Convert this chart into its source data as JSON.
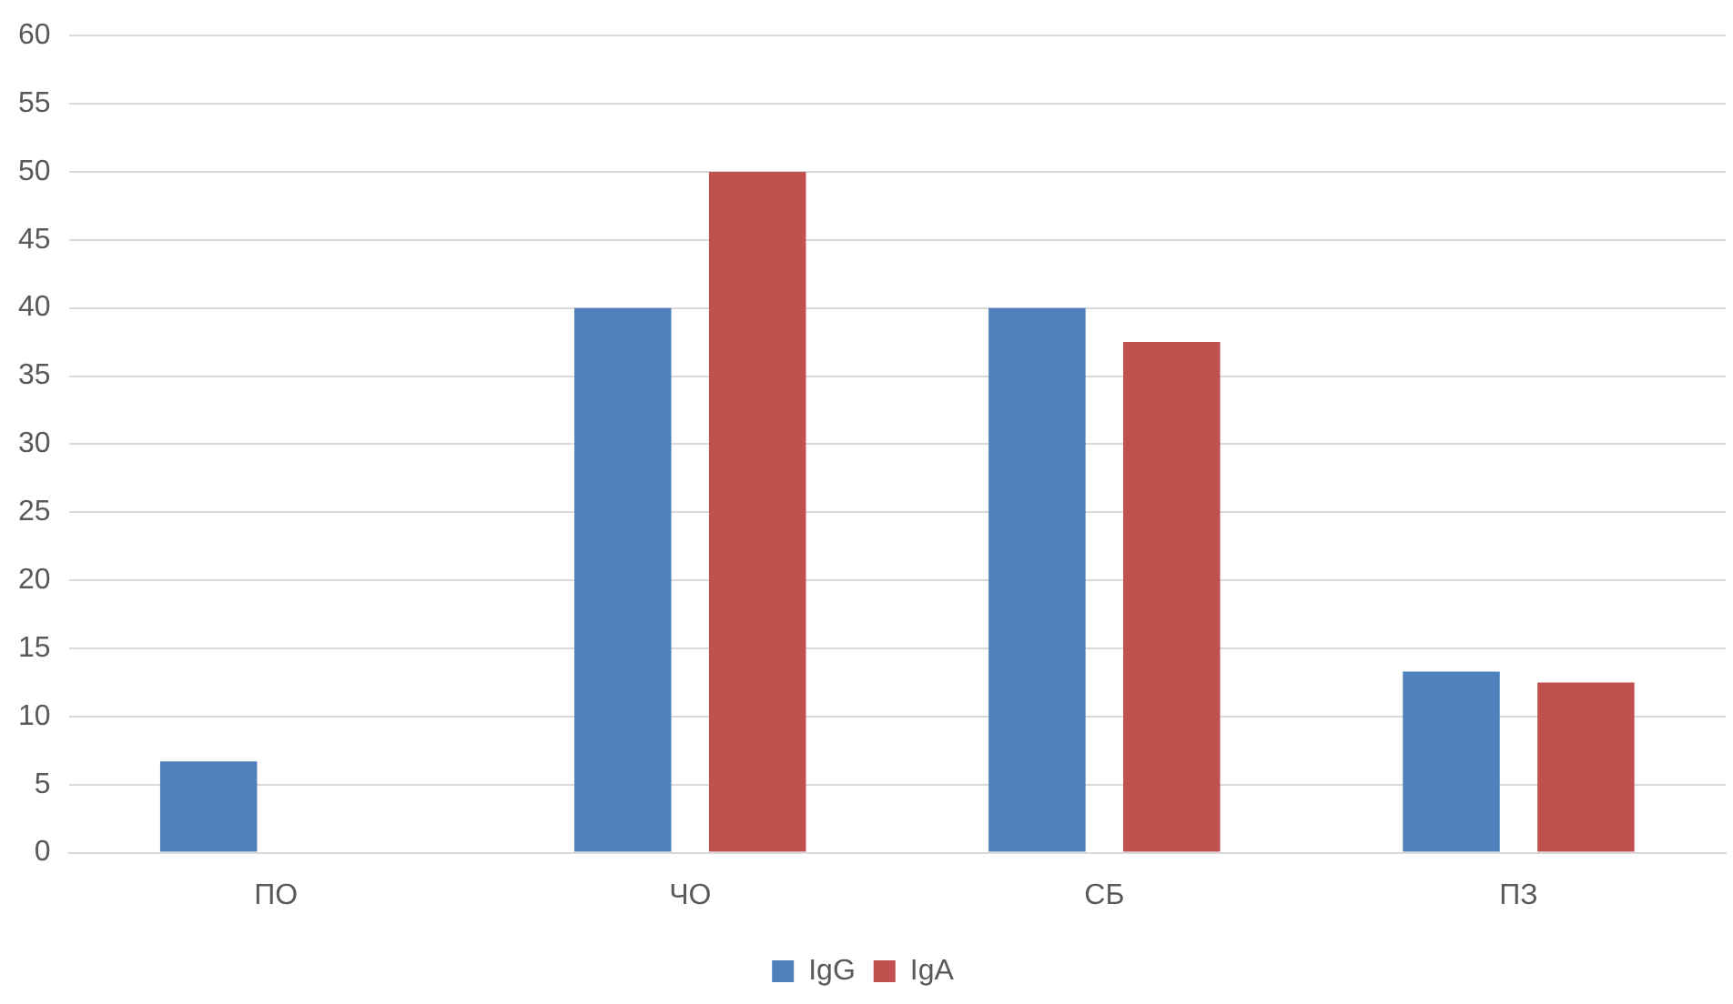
{
  "chart_data": {
    "type": "bar",
    "categories": [
      "ПО",
      "ЧО",
      "СБ",
      "ПЗ"
    ],
    "series": [
      {
        "name": "IgG",
        "color": "#4f81bd",
        "values": [
          6.7,
          40,
          40,
          13.3
        ]
      },
      {
        "name": "IgA",
        "color": "#c0504d",
        "values": [
          0,
          50,
          37.5,
          12.5
        ]
      }
    ],
    "ylim": [
      0,
      60
    ],
    "yticks": [
      0,
      5,
      10,
      15,
      20,
      25,
      30,
      35,
      40,
      45,
      50,
      55,
      60
    ],
    "grid": "y",
    "legend": "bottom"
  }
}
